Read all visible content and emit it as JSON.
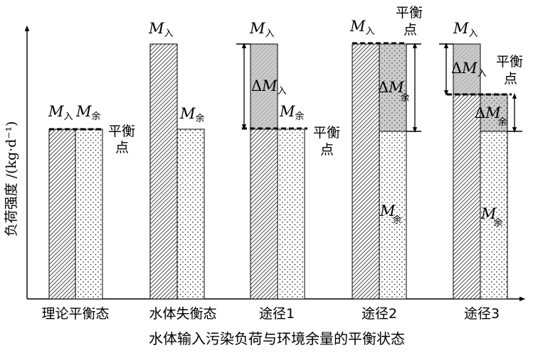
{
  "labels": {
    "m_in": "M",
    "m_in_sub": "入",
    "m_rem": "M",
    "m_rem_sub": "余",
    "delta": "Δ",
    "balance_point_1": "平衡",
    "balance_point_2": "点"
  },
  "axes": {
    "ylabel": "负荷强度 /(kg·d⁻¹)",
    "xlabel": "水体输入污染负荷与环境余量的平衡状态"
  },
  "categories": [
    "理论平衡态",
    "水体失衡态",
    "途径1",
    "途径2",
    "途径3"
  ],
  "colors": {
    "grey_fill": "#cbcbcb",
    "ink": "#000000"
  }
}
